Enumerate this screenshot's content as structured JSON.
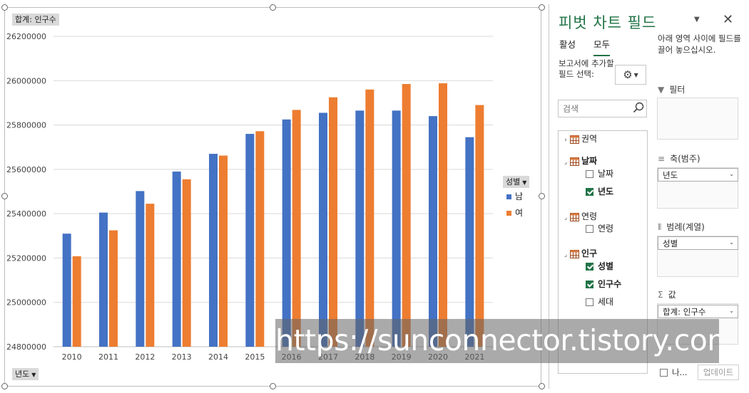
{
  "chart": {
    "value_field_button": "합계: 인구수",
    "axis_field_button": "년도",
    "legend_field_button": "성별",
    "legend": [
      {
        "label": "남",
        "color": "#4472c4"
      },
      {
        "label": "여",
        "color": "#ed7d31"
      }
    ]
  },
  "chart_data": {
    "type": "bar",
    "categories": [
      "2010",
      "2011",
      "2012",
      "2013",
      "2014",
      "2015",
      "2016",
      "2017",
      "2018",
      "2019",
      "2020",
      "2021"
    ],
    "series": [
      {
        "name": "남",
        "color": "#4472c4",
        "values": [
          25310000,
          25405000,
          25502000,
          25590000,
          25670000,
          25760000,
          25825000,
          25855000,
          25865000,
          25865000,
          25840000,
          25745000
        ]
      },
      {
        "name": "여",
        "color": "#ed7d31",
        "values": [
          25208000,
          25325000,
          25445000,
          25555000,
          25662000,
          25772000,
          25868000,
          25925000,
          25960000,
          25985000,
          25988000,
          25890000
        ]
      }
    ],
    "yticks": [
      "24800000",
      "25000000",
      "25200000",
      "25400000",
      "25600000",
      "25800000",
      "26000000",
      "26200000"
    ],
    "ylim": [
      24800000,
      26200000
    ],
    "grid": true,
    "legend_position": "right"
  },
  "watermark": "https://sunconnector.tistory.com",
  "pane": {
    "title": "피벗 차트 필드",
    "tabs": [
      "활성",
      "모두"
    ],
    "hint": "아래 영역 사이에 필드를 끌어 놓으십시오.",
    "report_label": "보고서에 추가할 필드 선택:",
    "search_placeholder": "검색",
    "fields": {
      "region": "권역",
      "date_table": "날짜",
      "date": "날짜",
      "year": "년도",
      "age_table": "연령",
      "age": "연령",
      "pop_table": "인구",
      "gender": "성별",
      "population": "인구수",
      "household": "세대"
    },
    "areas": {
      "filter": "필터",
      "axis": "축(범주)",
      "axis_item": "년도",
      "legend": "범례(계열)",
      "legend_item": "성별",
      "values": "값",
      "values_item": "합계: 인구수"
    },
    "defer_label": "나...",
    "update_button": "업데이트"
  }
}
